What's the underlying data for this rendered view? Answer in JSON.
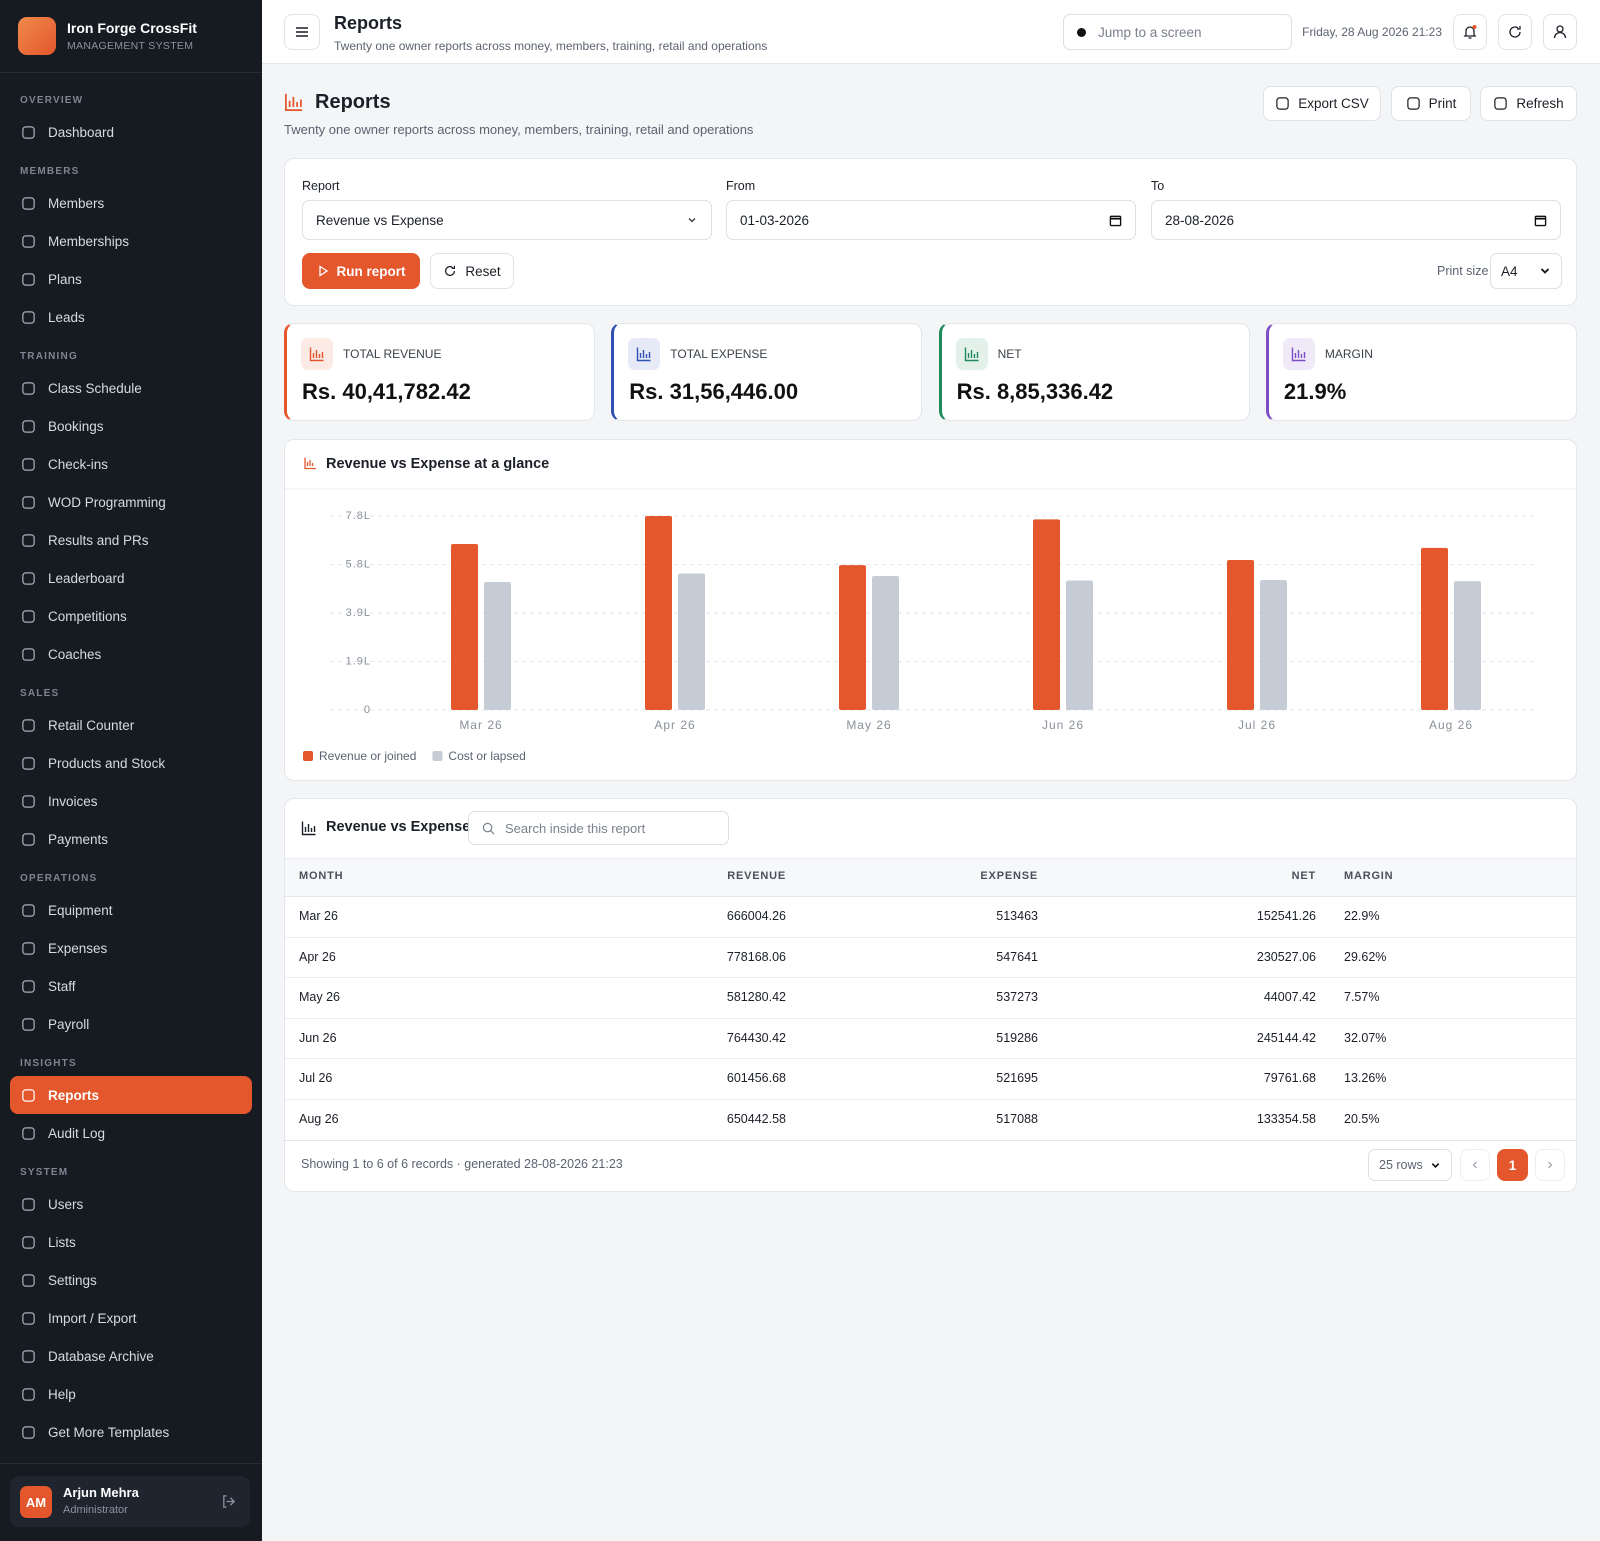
{
  "sidebar": {
    "brand": {
      "name": "Iron Forge CrossFit",
      "tagline": "MANAGEMENT SYSTEM"
    },
    "sections": [
      {
        "title": "OVERVIEW",
        "items": [
          "Dashboard"
        ]
      },
      {
        "title": "MEMBERS",
        "items": [
          "Members",
          "Memberships",
          "Plans",
          "Leads"
        ]
      },
      {
        "title": "TRAINING",
        "items": [
          "Class Schedule",
          "Bookings",
          "Check-ins",
          "WOD Programming",
          "Results and PRs",
          "Leaderboard",
          "Competitions",
          "Coaches"
        ]
      },
      {
        "title": "SALES",
        "items": [
          "Retail Counter",
          "Products and Stock",
          "Invoices",
          "Payments"
        ]
      },
      {
        "title": "OPERATIONS",
        "items": [
          "Equipment",
          "Expenses",
          "Staff",
          "Payroll"
        ]
      },
      {
        "title": "INSIGHTS",
        "items": [
          "Reports",
          "Audit Log"
        ]
      },
      {
        "title": "SYSTEM",
        "items": [
          "Users",
          "Lists",
          "Settings",
          "Import / Export",
          "Database Archive",
          "Help",
          "Get More Templates"
        ]
      }
    ],
    "user": {
      "initials": "AM",
      "name": "Arjun Mehra",
      "role": "Administrator"
    }
  },
  "header": {
    "title": "Reports",
    "subtitle": "Twenty one owner reports across money, members, training, retail and operations",
    "search_placeholder": "Jump to a screen",
    "datetime": "Friday, 28 Aug 2026 21:23"
  },
  "page": {
    "title": "Reports",
    "subtitle": "Twenty one owner reports across money, members, training, retail and operations",
    "actions": [
      "Export CSV",
      "Print",
      "Refresh"
    ]
  },
  "filters": {
    "report_label": "Report",
    "report_value": "Revenue vs Expense",
    "from_label": "From",
    "from_value": "01-03-2026",
    "to_label": "To",
    "to_value": "28-08-2026",
    "run": "Run report",
    "reset": "Reset",
    "print_size_label": "Print size",
    "print_size_value": "A4"
  },
  "kpis": [
    {
      "label": "TOTAL REVENUE",
      "value": "Rs. 40,41,782.42",
      "color": "#e4562c"
    },
    {
      "label": "TOTAL EXPENSE",
      "value": "Rs. 31,56,446.00",
      "color": "#2f4fb5"
    },
    {
      "label": "NET",
      "value": "Rs. 8,85,336.42",
      "color": "#1f8a5b"
    },
    {
      "label": "MARGIN",
      "value": "21.9%",
      "color": "#7c4dc4"
    }
  ],
  "chart": {
    "type": "bar",
    "title": "Revenue vs Expense at a glance",
    "categories": [
      "Mar 26",
      "Apr 26",
      "May 26",
      "Jun 26",
      "Jul 26",
      "Aug 26"
    ],
    "series": [
      {
        "name": "Revenue or joined",
        "color": "#e4562c",
        "values": [
          666004.26,
          778168.06,
          581280.42,
          764430.42,
          601456.68,
          650442.58
        ]
      },
      {
        "name": "Cost or lapsed",
        "color": "#c5ccd6",
        "values": [
          513463,
          547641,
          537273,
          519286,
          521695,
          517088
        ]
      }
    ],
    "ylim": [
      0,
      778168.06
    ],
    "yticks": [
      0,
      {
        "value": 194542.015,
        "label": "1.9L"
      },
      {
        "value": 389084.03,
        "label": "3.9L"
      },
      {
        "value": 583626.045,
        "label": "5.8L"
      },
      {
        "value": 778168.06,
        "label": "7.8L"
      }
    ],
    "grid": true
  },
  "table": {
    "title": "Revenue vs Expense",
    "search_placeholder": "Search inside this report",
    "columns": [
      "MONTH",
      "REVENUE",
      "EXPENSE",
      "NET",
      "MARGIN"
    ],
    "rows": [
      [
        "Mar 26",
        666004.26,
        513463,
        152541.26,
        "22.9%"
      ],
      [
        "Apr 26",
        778168.06,
        547641,
        230527.06,
        "29.62%"
      ],
      [
        "May 26",
        581280.42,
        537273,
        44007.42,
        "7.57%"
      ],
      [
        "Jun 26",
        764430.42,
        519286,
        245144.42,
        "32.07%"
      ],
      [
        "Jul 26",
        601456.68,
        521695,
        79761.68,
        "13.26%"
      ],
      [
        "Aug 26",
        650442.58,
        517088,
        133354.58,
        "20.5%"
      ]
    ],
    "footer": "Showing 1 to 6 of 6 records · generated 28-08-2026 21:23",
    "page_size": "25 rows",
    "page": 1
  }
}
